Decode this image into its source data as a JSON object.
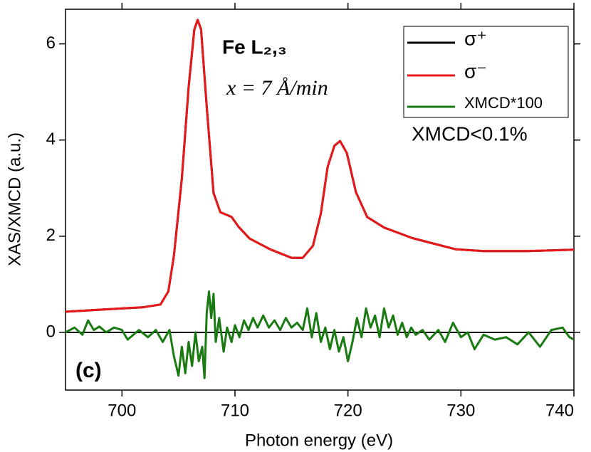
{
  "chart_data": {
    "type": "line",
    "xlabel": "Photon energy (eV)",
    "ylabel": "XAS/XMCD (a.u.)",
    "xlim": [
      695,
      740
    ],
    "xticks": [
      700,
      710,
      720,
      730,
      740
    ],
    "ylim": [
      -1.2,
      6.72
    ],
    "yticks": [
      0,
      2,
      4,
      6
    ],
    "legend": "upper right",
    "annotations": [
      "Fe L₂,₃",
      "x = 7 Å/min",
      "XMCD<0.1%",
      "(c)"
    ],
    "series": [
      {
        "name": "σ⁺",
        "color": "#000000",
        "x": [
          695,
          699.5,
          701.8,
          703.4,
          704.1,
          704.6,
          705.3,
          705.9,
          706.4,
          706.7,
          707.0,
          707.5,
          708.1,
          708.7,
          709.7,
          710.3,
          711.3,
          713.1,
          715.0,
          716.0,
          716.9,
          717.6,
          718.2,
          718.8,
          719.3,
          719.9,
          720.7,
          721.7,
          723.2,
          725.7,
          729.5,
          732.0,
          735.8,
          740
        ],
        "values": [
          0.43,
          0.49,
          0.52,
          0.58,
          0.85,
          1.6,
          3.2,
          5.1,
          6.3,
          6.5,
          6.3,
          4.7,
          2.9,
          2.5,
          2.4,
          2.2,
          1.95,
          1.73,
          1.55,
          1.55,
          1.8,
          2.47,
          3.44,
          3.88,
          3.98,
          3.73,
          2.92,
          2.4,
          2.18,
          1.96,
          1.73,
          1.69,
          1.69,
          1.72
        ]
      },
      {
        "name": "σ⁻",
        "color": "#e8181a",
        "x": [
          695,
          699.5,
          701.8,
          703.4,
          704.1,
          704.6,
          705.3,
          705.9,
          706.4,
          706.7,
          707.0,
          707.5,
          708.1,
          708.7,
          709.7,
          710.3,
          711.3,
          713.1,
          715.0,
          716.0,
          716.9,
          717.6,
          718.2,
          718.8,
          719.3,
          719.9,
          720.7,
          721.7,
          723.2,
          725.7,
          729.5,
          732.0,
          735.8,
          740
        ],
        "values": [
          0.43,
          0.49,
          0.52,
          0.58,
          0.85,
          1.6,
          3.2,
          5.1,
          6.3,
          6.5,
          6.3,
          4.7,
          2.9,
          2.5,
          2.4,
          2.2,
          1.95,
          1.73,
          1.55,
          1.55,
          1.8,
          2.47,
          3.44,
          3.88,
          3.98,
          3.73,
          2.92,
          2.4,
          2.18,
          1.96,
          1.73,
          1.69,
          1.69,
          1.72
        ]
      },
      {
        "name": "XMCD*100",
        "color": "#1a7a12",
        "x": [
          695,
          695.8,
          696.5,
          697,
          697.5,
          698,
          698.6,
          699.3,
          700,
          700.5,
          701.5,
          702.3,
          703,
          703.6,
          704.2,
          704.6,
          705,
          705.3,
          705.6,
          705.9,
          706.2,
          706.5,
          706.8,
          707.1,
          707.3,
          707.5,
          707.7,
          707.9,
          708.1,
          708.3,
          708.6,
          709,
          709.3,
          709.7,
          710,
          710.4,
          710.8,
          711.2,
          711.6,
          712,
          712.5,
          713,
          713.5,
          714,
          714.5,
          715,
          715.5,
          716,
          716.4,
          716.8,
          717.2,
          717.6,
          718,
          718.4,
          718.8,
          719.2,
          719.6,
          720,
          720.4,
          720.8,
          721.2,
          721.6,
          722,
          722.4,
          722.8,
          723.2,
          723.6,
          724,
          724.4,
          724.8,
          725.2,
          725.6,
          726,
          726.6,
          727.2,
          728,
          728.6,
          729.3,
          730,
          730.6,
          731.2,
          732,
          733,
          734,
          735,
          736,
          737,
          738,
          739,
          739.6,
          740
        ],
        "values": [
          0,
          0.1,
          -0.05,
          0.25,
          0.05,
          0.12,
          0,
          0.1,
          0.05,
          -0.15,
          0.05,
          -0.1,
          0.05,
          -0.2,
          0.05,
          -0.5,
          -0.9,
          -0.3,
          -0.85,
          -0.2,
          -0.7,
          0.0,
          -0.6,
          -0.3,
          -0.95,
          0.4,
          0.85,
          0.3,
          0.8,
          -0.2,
          0.3,
          -0.4,
          0.1,
          -0.2,
          0.15,
          -0.1,
          0.25,
          0.05,
          0.3,
          0.1,
          0.35,
          0.1,
          0.25,
          0.05,
          0.3,
          0.1,
          0.2,
          0.05,
          0.5,
          -0.1,
          0.4,
          -0.2,
          0.1,
          -0.35,
          0.05,
          -0.4,
          -0.1,
          -0.6,
          -0.2,
          0.3,
          -0.1,
          0.5,
          0.1,
          0.35,
          -0.1,
          0.5,
          0.1,
          0.35,
          -0.05,
          0.2,
          -0.1,
          0.1,
          -0.05,
          0.05,
          -0.15,
          0.05,
          -0.2,
          0.2,
          -0.1,
          0.0,
          -0.35,
          -0.05,
          -0.15,
          -0.1,
          -0.25,
          0.0,
          -0.3,
          0.05,
          0.1,
          -0.1,
          -0.15
        ]
      }
    ]
  }
}
